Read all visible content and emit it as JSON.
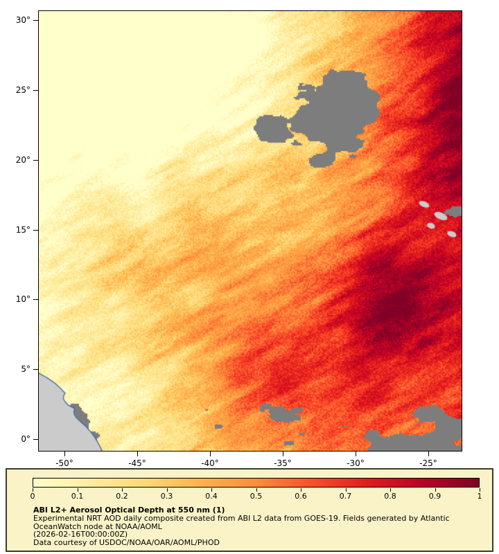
{
  "map": {
    "lat_labels": [
      "30°",
      "25°",
      "20°",
      "15°",
      "10°",
      "5°",
      "0°"
    ],
    "lon_labels": [
      "-50°",
      "-45°",
      "-40°",
      "-35°",
      "-30°",
      "-25°"
    ]
  },
  "legend": {
    "tick_labels": [
      "0",
      "0.1",
      "0.2",
      "0.3",
      "0.4",
      "0.5",
      "0.6",
      "0.7",
      "0.8",
      "0.9",
      "1"
    ],
    "title": "ABI L2+ Aerosol Optical Depth at 550 nm (1)",
    "description_line1": "Experimental NRT AOD daily composite created from ABI L2 data from GOES-19. Fields generated by Atlantic",
    "description_line2": "OceanWatch node at NOAA/AOML",
    "timestamp": "(2026-02-16T00:00:00Z)",
    "credit": "Data courtesy of USDOC/NOAA/OAR/AOML/PHOD"
  },
  "colors": {
    "colormap": [
      "#FFFFCC",
      "#FFEDA0",
      "#FED976",
      "#FEB24C",
      "#FD8D3C",
      "#FC4E2A",
      "#E31A1C",
      "#BD0026",
      "#800026"
    ],
    "cloud_gray": "#7D7D7D",
    "land_gray": "#CBCBCB",
    "coast_blue": "#4169AA",
    "legend_bg": "#FAF3C8",
    "legend_border": "#3C3C28"
  }
}
